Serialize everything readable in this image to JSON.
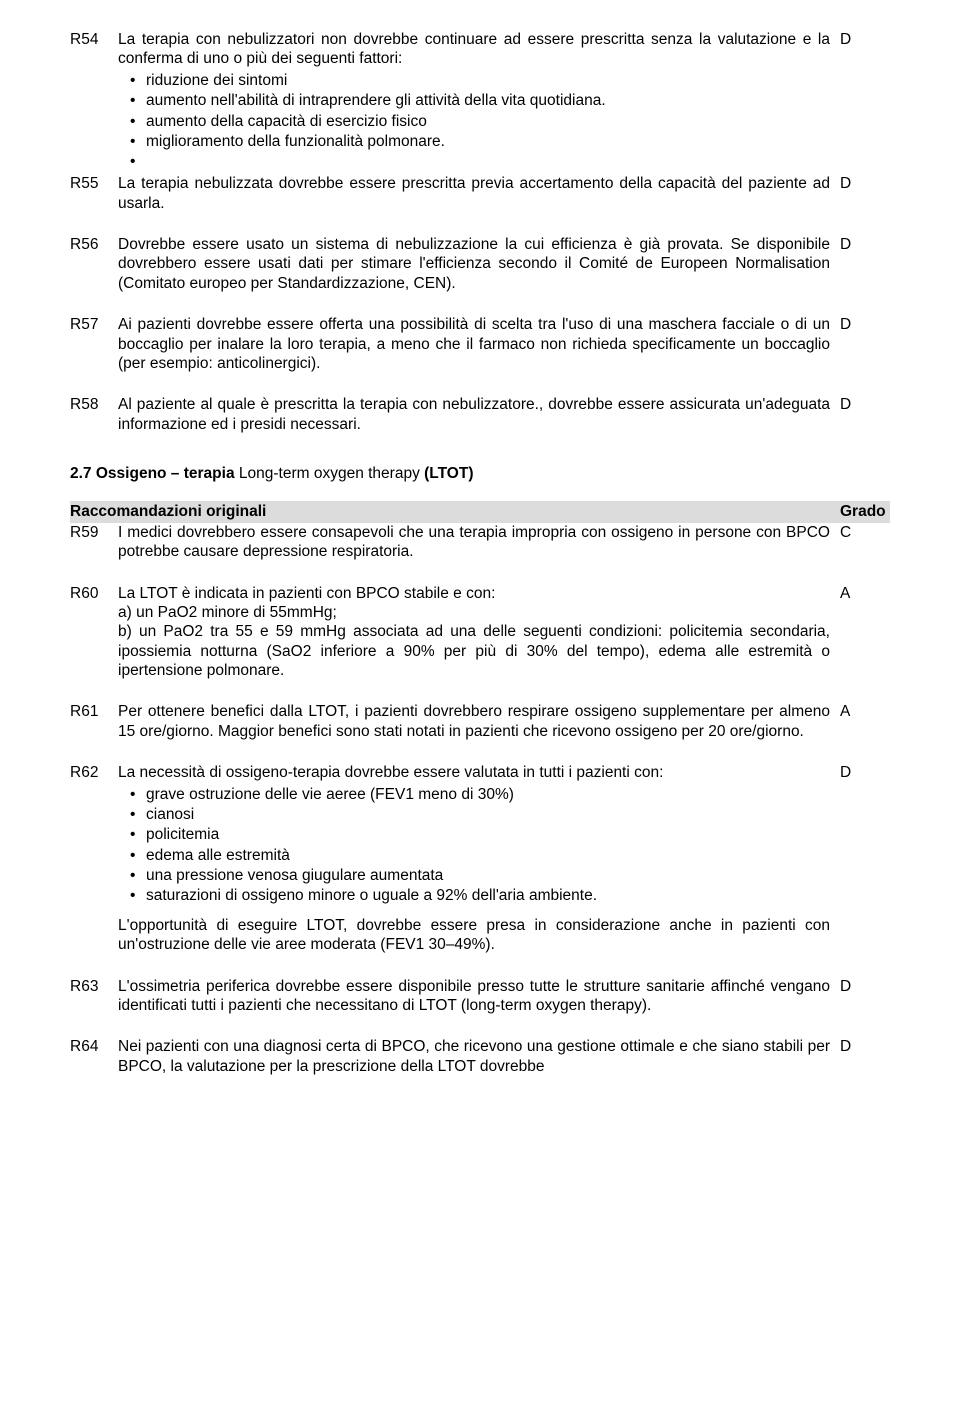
{
  "recs": [
    {
      "id": "R54",
      "grade": "D",
      "lead": "La terapia con nebulizzatori non dovrebbe continuare ad essere prescritta senza la valutazione e la conferma di uno o più dei seguenti fattori:",
      "bullets": [
        "riduzione dei sintomi",
        "aumento nell'abilità di intraprendere gli attività della vita quotidiana.",
        "aumento della capacità di esercizio fisico",
        "miglioramento della funzionalità polmonare.",
        ""
      ]
    },
    {
      "id": "R55",
      "grade": "D",
      "text": "La terapia nebulizzata dovrebbe essere prescritta previa accertamento della capacità del paziente ad usarla."
    },
    {
      "id": "R56",
      "grade": "D",
      "text": "Dovrebbe essere usato un sistema di nebulizzazione la cui efficienza è già provata. Se disponibile dovrebbero essere usati dati per stimare l'efficienza secondo il Comité de Europeen Normalisation (Comitato europeo per Standardizzazione, CEN)."
    },
    {
      "id": "R57",
      "grade": "D",
      "text": "Ai pazienti dovrebbe essere offerta una possibilità di scelta tra l'uso di  una maschera facciale o di un boccaglio per inalare la loro terapia, a meno che il farmaco non richieda specificamente un boccaglio (per esempio: anticolinergici)."
    },
    {
      "id": "R58",
      "grade": "D",
      "text": "Al paziente al quale è prescritta la terapia con nebulizzatore., dovrebbe essere assicurata un'adeguata informazione ed i presidi necessari."
    }
  ],
  "section": {
    "number": "2.7",
    "bold1": "Ossigeno – terapia",
    "normal": " Long-term oxygen therapy ",
    "bold2": "(LTOT)"
  },
  "rac_header": {
    "label": "Raccomandazioni originali",
    "grado": "Grado"
  },
  "recs2": [
    {
      "id": "R59",
      "grade": "C",
      "text": "I medici dovrebbero essere consapevoli che una terapia impropria con ossigeno in persone con BPCO potrebbe causare depressione respiratoria."
    },
    {
      "id": "R60",
      "grade": "A",
      "text": "La LTOT è indicata in pazienti con BPCO stabile e con:\na) un PaO2 minore di 55mmHg;\nb) un PaO2 tra 55 e 59 mmHg associata ad una delle seguenti condizioni: policitemia secondaria, ipossiemia notturna (SaO2 inferiore a 90% per più di 30% del tempo), edema alle estremità o ipertensione polmonare."
    },
    {
      "id": "R61",
      "grade": "A",
      "text": "Per ottenere benefici dalla LTOT, i pazienti dovrebbero respirare ossigeno supplementare per almeno 15 ore/giorno. Maggior benefici sono stati notati in pazienti che ricevono ossigeno per 20 ore/giorno."
    },
    {
      "id": "R62",
      "grade": "D",
      "lead": "La necessità di ossigeno-terapia dovrebbe essere valutata in tutti i pazienti con:",
      "bullets": [
        "grave ostruzione delle vie aeree (FEV1 meno di 30%)",
        "cianosi",
        "policitemia",
        "edema alle estremità",
        "una pressione venosa giugulare aumentata",
        "saturazioni di ossigeno minore o uguale a 92% dell'aria ambiente."
      ],
      "post": "L'opportunità di eseguire LTOT, dovrebbe essere presa in considerazione anche in pazienti con un'ostruzione delle vie aree moderata (FEV1 30–49%)."
    },
    {
      "id": "R63",
      "grade": "D",
      "text": "L'ossimetria periferica dovrebbe essere disponibile presso tutte le strutture sanitarie affinché vengano identificati tutti i pazienti che necessitano di LTOT (long-term oxygen therapy)."
    },
    {
      "id": "R64",
      "grade": "D",
      "text": "Nei pazienti con una diagnosi certa di BPCO, che ricevono una gestione  ottimale e che siano stabili per BPCO, la valutazione per la prescrizione della LTOT dovrebbe"
    }
  ]
}
